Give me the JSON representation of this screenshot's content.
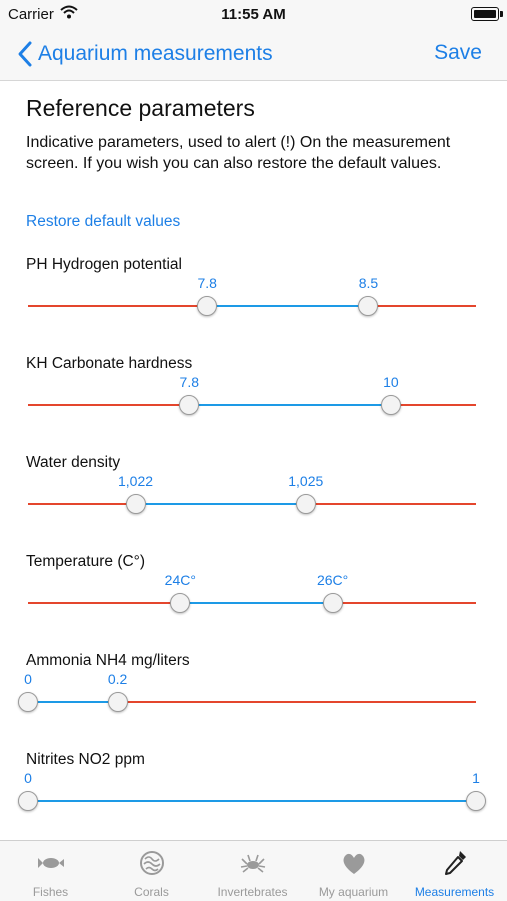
{
  "status_bar": {
    "carrier": "Carrier",
    "time": "11:55 AM"
  },
  "nav": {
    "back_label": "Aquarium measurements",
    "save_label": "Save"
  },
  "section": {
    "heading": "Reference parameters",
    "description": "Indicative parameters, used to alert (!) On the measurement screen. If you wish you can also restore the default values.",
    "restore_label": "Restore default values"
  },
  "parameters": [
    {
      "label": "PH Hydrogen potential",
      "min_label": "7.8",
      "max_label": "8.5",
      "min_pos": 0.4,
      "max_pos": 0.76
    },
    {
      "label": "KH Carbonate hardness",
      "min_label": "7.8",
      "max_label": "10",
      "min_pos": 0.36,
      "max_pos": 0.81
    },
    {
      "label": "Water density",
      "min_label": "1,022",
      "max_label": "1,025",
      "min_pos": 0.24,
      "max_pos": 0.62
    },
    {
      "label": "Temperature (C°)",
      "min_label": "24C°",
      "max_label": "26C°",
      "min_pos": 0.34,
      "max_pos": 0.68
    },
    {
      "label": "Ammonia NH4 mg/liters",
      "min_label": "0",
      "max_label": "0.2",
      "min_pos": 0.0,
      "max_pos": 0.2
    },
    {
      "label": "Nitrites NO2  ppm",
      "min_label": "0",
      "max_label": "1",
      "min_pos": 0.0,
      "max_pos": 1.0
    }
  ],
  "tabs": [
    {
      "label": "Fishes",
      "icon": "fish-icon",
      "active": false
    },
    {
      "label": "Corals",
      "icon": "coral-icon",
      "active": false
    },
    {
      "label": "Invertebrates",
      "icon": "crab-icon",
      "active": false
    },
    {
      "label": "My aquarium",
      "icon": "heart-icon",
      "active": false
    },
    {
      "label": "Measurements",
      "icon": "dropper-icon",
      "active": true
    }
  ],
  "colors": {
    "accent": "#1d7fe6",
    "range_in": "#1d9ae6",
    "range_out": "#e4462d"
  }
}
